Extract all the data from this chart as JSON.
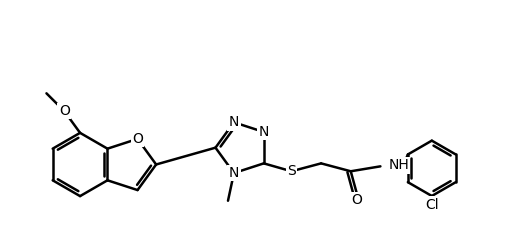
{
  "background_color": "#ffffff",
  "line_color": "#000000",
  "line_width": 1.8,
  "font_size": 10,
  "figsize": [
    5.15,
    2.41
  ],
  "dpi": 100,
  "labels": {
    "furan_O": "O",
    "methoxy_O": "O",
    "triazole_N1": "N",
    "triazole_N2": "N",
    "triazole_N3": "N",
    "sulfur": "S",
    "carbonyl_O": "O",
    "NH": "NH",
    "Cl": "Cl"
  }
}
